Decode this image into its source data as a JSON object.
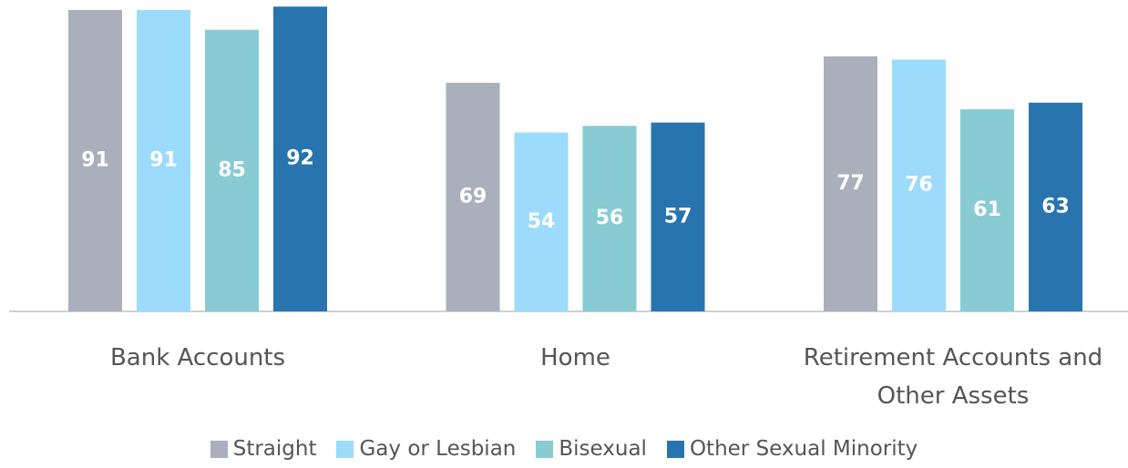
{
  "chart_data": {
    "type": "bar",
    "categories": [
      "Bank Accounts",
      "Home",
      "Retirement Accounts and Other Assets"
    ],
    "series": [
      {
        "name": "Straight",
        "color": "#a9b0bb",
        "values": [
          91,
          69,
          77
        ]
      },
      {
        "name": "Gay or Lesbian",
        "color": "#9ddbfc",
        "values": [
          91,
          54,
          76
        ]
      },
      {
        "name": "Bisexual",
        "color": "#88cbd3",
        "values": [
          85,
          56,
          61
        ]
      },
      {
        "name": "Other Sexual Minority",
        "color": "#2874ae",
        "values": [
          92,
          57,
          63
        ]
      }
    ],
    "ylim": [
      0,
      94
    ],
    "legend": "bottom",
    "data_labels": true
  }
}
